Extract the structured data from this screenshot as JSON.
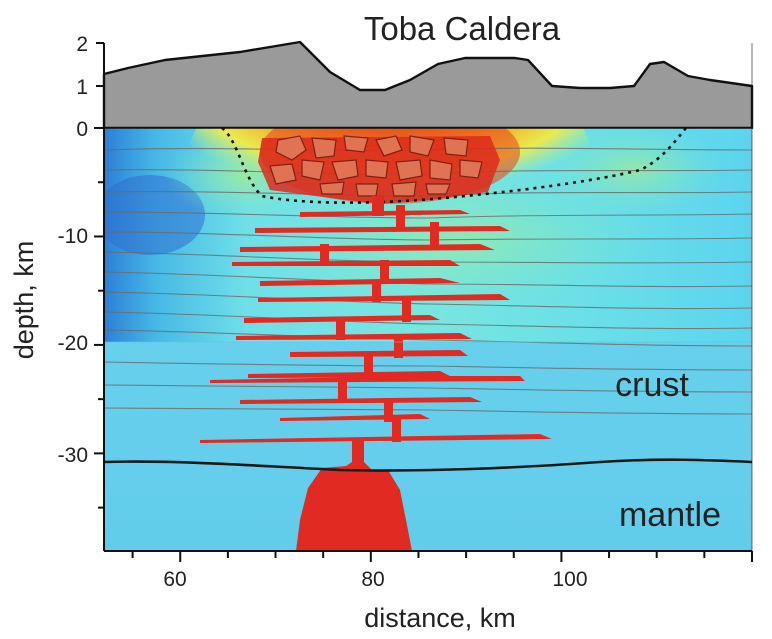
{
  "title": "Toba Caldera",
  "x_axis": {
    "label": "distance, km",
    "ticks": [
      "60",
      "80",
      "100"
    ],
    "tick_values": [
      60,
      80,
      100
    ],
    "range": [
      52,
      120
    ]
  },
  "y_axis": {
    "label": "depth, km",
    "ticks": [
      "0",
      "-10",
      "-20",
      "-30"
    ],
    "tick_values": [
      0,
      -10,
      -20,
      -30
    ],
    "range": [
      -39,
      0
    ]
  },
  "topo_axis": {
    "ticks": [
      "2",
      "1"
    ],
    "tick_values": [
      2,
      1
    ]
  },
  "labels": {
    "crust": "crust",
    "mantle": "mantle"
  },
  "colors": {
    "topography": "#9a9a9a",
    "magma": "#dd2222",
    "background_blue": "#69d0ec",
    "anomaly_red": "#e8401a",
    "anomaly_yellow": "#f0e840",
    "moho_line": "#222222"
  },
  "moho_depth_km": -30.8,
  "anomaly_base_km": -20
}
